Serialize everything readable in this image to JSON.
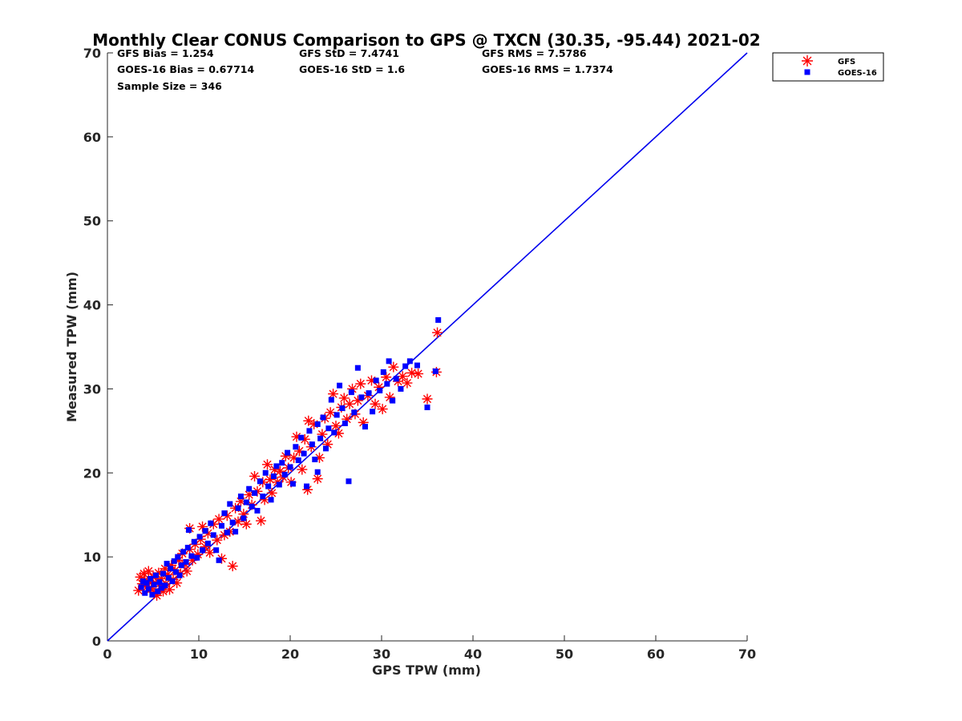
{
  "chart_data": {
    "type": "scatter",
    "title": "Monthly Clear CONUS Comparison to GPS @ TXCN (30.35, -95.44) 2021-02",
    "xlabel": "GPS TPW (mm)",
    "ylabel": "Measured TPW (mm)",
    "xlim": [
      0,
      70
    ],
    "ylim": [
      0,
      70
    ],
    "xticks": [
      "0",
      "10",
      "20",
      "30",
      "40",
      "50",
      "60",
      "70"
    ],
    "yticks": [
      "0",
      "10",
      "20",
      "30",
      "40",
      "50",
      "60",
      "70"
    ],
    "grid": false,
    "legend_position": "top-right-outside",
    "reference_line": {
      "x": [
        0,
        70
      ],
      "y": [
        0,
        70
      ],
      "color": "#0000ee"
    },
    "stats": [
      "GFS Bias = 1.254",
      "GFS StD = 7.4741",
      "GFS RMS = 7.5786",
      "GOES-16 Bias = 0.67714",
      "GOES-16 StD = 1.6",
      "GOES-16 RMS = 1.7374",
      "Sample Size = 346"
    ],
    "series": [
      {
        "name": "GFS",
        "marker": "asterisk",
        "color": "#ff0000",
        "points": [
          [
            3.4,
            6.0
          ],
          [
            3.6,
            7.6
          ],
          [
            3.8,
            6.8
          ],
          [
            4.0,
            8.0
          ],
          [
            4.1,
            7.2
          ],
          [
            4.3,
            6.4
          ],
          [
            4.5,
            8.3
          ],
          [
            4.6,
            7.0
          ],
          [
            4.8,
            6.2
          ],
          [
            5.0,
            7.6
          ],
          [
            5.1,
            5.8
          ],
          [
            5.3,
            6.9
          ],
          [
            5.4,
            5.4
          ],
          [
            5.6,
            8.1
          ],
          [
            5.8,
            6.5
          ],
          [
            5.9,
            7.4
          ],
          [
            6.1,
            5.9
          ],
          [
            6.3,
            8.6
          ],
          [
            6.4,
            6.8
          ],
          [
            6.6,
            7.9
          ],
          [
            6.8,
            6.1
          ],
          [
            7.0,
            9.0
          ],
          [
            7.2,
            7.3
          ],
          [
            7.4,
            8.4
          ],
          [
            7.6,
            6.9
          ],
          [
            7.8,
            9.6
          ],
          [
            8.0,
            8.0
          ],
          [
            8.2,
            10.4
          ],
          [
            8.5,
            9.1
          ],
          [
            8.7,
            8.3
          ],
          [
            9.0,
            10.9
          ],
          [
            9.0,
            13.4
          ],
          [
            9.3,
            9.6
          ],
          [
            9.6,
            11.5
          ],
          [
            9.9,
            10.3
          ],
          [
            10.2,
            12.1
          ],
          [
            10.4,
            13.6
          ],
          [
            10.7,
            11.2
          ],
          [
            11.0,
            12.8
          ],
          [
            11.2,
            10.5
          ],
          [
            11.6,
            13.9
          ],
          [
            12.0,
            12.0
          ],
          [
            12.2,
            14.5
          ],
          [
            12.5,
            9.8
          ],
          [
            12.8,
            12.6
          ],
          [
            13.1,
            14.9
          ],
          [
            13.4,
            13.0
          ],
          [
            13.7,
            8.9
          ],
          [
            14.0,
            15.8
          ],
          [
            14.3,
            14.2
          ],
          [
            14.6,
            16.6
          ],
          [
            14.9,
            15.1
          ],
          [
            15.2,
            13.9
          ],
          [
            15.5,
            17.4
          ],
          [
            15.8,
            16.2
          ],
          [
            16.1,
            19.6
          ],
          [
            16.4,
            17.8
          ],
          [
            16.8,
            14.3
          ],
          [
            17.0,
            18.9
          ],
          [
            17.2,
            16.8
          ],
          [
            17.5,
            21.0
          ],
          [
            17.8,
            19.2
          ],
          [
            18.0,
            17.6
          ],
          [
            18.3,
            20.4
          ],
          [
            18.6,
            18.9
          ],
          [
            18.9,
            20.2
          ],
          [
            19.2,
            19.5
          ],
          [
            19.5,
            22.0
          ],
          [
            19.8,
            20.6
          ],
          [
            20.1,
            18.9
          ],
          [
            20.4,
            21.8
          ],
          [
            20.7,
            24.3
          ],
          [
            21.0,
            22.6
          ],
          [
            21.3,
            20.4
          ],
          [
            21.6,
            24.0
          ],
          [
            21.9,
            18.0
          ],
          [
            22.0,
            26.2
          ],
          [
            22.3,
            23.1
          ],
          [
            22.6,
            25.8
          ],
          [
            23.0,
            19.3
          ],
          [
            23.2,
            21.8
          ],
          [
            23.5,
            24.6
          ],
          [
            23.8,
            26.5
          ],
          [
            24.1,
            23.4
          ],
          [
            24.4,
            27.2
          ],
          [
            24.7,
            29.4
          ],
          [
            25.0,
            25.6
          ],
          [
            25.3,
            24.7
          ],
          [
            25.6,
            27.8
          ],
          [
            25.9,
            28.9
          ],
          [
            26.2,
            26.4
          ],
          [
            26.5,
            28.2
          ],
          [
            26.8,
            30.0
          ],
          [
            27.1,
            27.0
          ],
          [
            27.4,
            28.6
          ],
          [
            27.7,
            30.6
          ],
          [
            28.0,
            26.0
          ],
          [
            28.5,
            29.2
          ],
          [
            28.9,
            31.0
          ],
          [
            29.3,
            28.2
          ],
          [
            29.7,
            30.2
          ],
          [
            30.1,
            27.6
          ],
          [
            30.5,
            31.4
          ],
          [
            30.9,
            29.0
          ],
          [
            31.3,
            32.6
          ],
          [
            31.8,
            30.9
          ],
          [
            32.3,
            31.5
          ],
          [
            32.8,
            30.7
          ],
          [
            33.3,
            31.9
          ],
          [
            34.0,
            31.8
          ],
          [
            35.0,
            28.8
          ],
          [
            36.0,
            32.0
          ],
          [
            36.1,
            36.7
          ]
        ]
      },
      {
        "name": "GOES-16",
        "marker": "square",
        "color": "#0000ff",
        "points": [
          [
            3.7,
            6.4
          ],
          [
            3.9,
            7.1
          ],
          [
            4.1,
            5.7
          ],
          [
            4.3,
            6.9
          ],
          [
            4.5,
            6.2
          ],
          [
            4.7,
            7.4
          ],
          [
            4.9,
            5.5
          ],
          [
            5.1,
            6.7
          ],
          [
            5.3,
            7.8
          ],
          [
            5.5,
            5.9
          ],
          [
            5.7,
            7.0
          ],
          [
            5.9,
            6.3
          ],
          [
            6.1,
            8.0
          ],
          [
            6.3,
            6.6
          ],
          [
            6.5,
            9.2
          ],
          [
            6.7,
            7.5
          ],
          [
            6.9,
            8.6
          ],
          [
            7.1,
            7.1
          ],
          [
            7.3,
            9.5
          ],
          [
            7.5,
            8.2
          ],
          [
            7.7,
            10.0
          ],
          [
            7.9,
            7.8
          ],
          [
            8.1,
            9.0
          ],
          [
            8.3,
            10.6
          ],
          [
            8.6,
            9.4
          ],
          [
            8.8,
            11.1
          ],
          [
            8.9,
            13.2
          ],
          [
            9.2,
            10.1
          ],
          [
            9.5,
            11.8
          ],
          [
            9.8,
            9.9
          ],
          [
            10.1,
            12.4
          ],
          [
            10.4,
            10.8
          ],
          [
            10.7,
            13.1
          ],
          [
            11.0,
            11.6
          ],
          [
            11.3,
            14.0
          ],
          [
            11.6,
            12.6
          ],
          [
            11.9,
            10.8
          ],
          [
            12.2,
            9.6
          ],
          [
            12.5,
            13.7
          ],
          [
            12.8,
            15.2
          ],
          [
            13.1,
            12.9
          ],
          [
            13.4,
            16.3
          ],
          [
            13.7,
            14.1
          ],
          [
            14.0,
            13.0
          ],
          [
            14.3,
            15.8
          ],
          [
            14.6,
            17.2
          ],
          [
            14.9,
            14.6
          ],
          [
            15.2,
            16.5
          ],
          [
            15.5,
            18.1
          ],
          [
            15.8,
            16.0
          ],
          [
            16.1,
            17.6
          ],
          [
            16.4,
            15.5
          ],
          [
            16.7,
            19.0
          ],
          [
            17.0,
            17.2
          ],
          [
            17.3,
            20.0
          ],
          [
            17.6,
            18.4
          ],
          [
            17.9,
            16.8
          ],
          [
            18.2,
            19.6
          ],
          [
            18.5,
            20.8
          ],
          [
            18.8,
            18.6
          ],
          [
            19.1,
            21.2
          ],
          [
            19.4,
            19.8
          ],
          [
            19.7,
            22.4
          ],
          [
            20.0,
            20.7
          ],
          [
            20.3,
            18.7
          ],
          [
            20.6,
            23.1
          ],
          [
            20.9,
            21.5
          ],
          [
            21.2,
            24.2
          ],
          [
            21.5,
            22.3
          ],
          [
            21.8,
            18.4
          ],
          [
            22.1,
            25.0
          ],
          [
            22.4,
            23.4
          ],
          [
            22.7,
            21.6
          ],
          [
            23.0,
            25.8
          ],
          [
            23.0,
            20.1
          ],
          [
            23.3,
            24.1
          ],
          [
            23.6,
            26.6
          ],
          [
            23.9,
            22.9
          ],
          [
            24.2,
            25.3
          ],
          [
            24.5,
            28.7
          ],
          [
            24.8,
            24.8
          ],
          [
            25.1,
            26.9
          ],
          [
            25.4,
            30.4
          ],
          [
            25.7,
            27.7
          ],
          [
            26.0,
            25.9
          ],
          [
            26.4,
            19.0
          ],
          [
            26.7,
            29.6
          ],
          [
            27.0,
            27.2
          ],
          [
            27.4,
            32.5
          ],
          [
            27.8,
            29.0
          ],
          [
            28.2,
            25.5
          ],
          [
            28.6,
            29.5
          ],
          [
            29.0,
            27.3
          ],
          [
            29.4,
            31.0
          ],
          [
            29.8,
            29.8
          ],
          [
            30.2,
            32.0
          ],
          [
            30.6,
            30.6
          ],
          [
            30.8,
            33.3
          ],
          [
            31.2,
            28.6
          ],
          [
            31.6,
            31.2
          ],
          [
            32.1,
            30.0
          ],
          [
            32.6,
            32.7
          ],
          [
            33.1,
            33.3
          ],
          [
            33.9,
            32.8
          ],
          [
            35.0,
            27.8
          ],
          [
            35.9,
            32.1
          ],
          [
            36.2,
            38.2
          ]
        ]
      }
    ]
  }
}
